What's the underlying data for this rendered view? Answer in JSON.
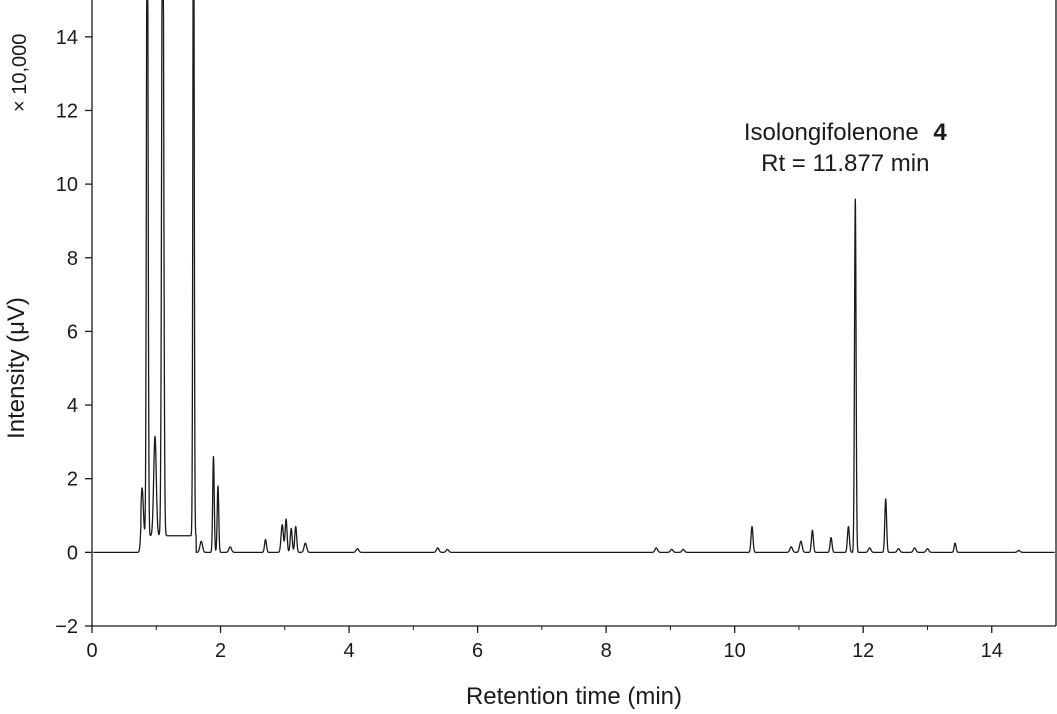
{
  "chart_data": {
    "type": "line",
    "title": "",
    "xlabel": "Retention time (min)",
    "ylabel": "Intensity (μV)",
    "y_multiplier": "× 10,000",
    "xlim": [
      0,
      15
    ],
    "ylim": [
      -2,
      15
    ],
    "x_ticks": [
      0,
      2,
      4,
      6,
      8,
      10,
      12,
      14
    ],
    "y_ticks": [
      -2,
      0,
      2,
      4,
      6,
      8,
      10,
      12,
      14
    ],
    "grid": false,
    "legend": "none",
    "line_color": "#1a1a1a",
    "annotations": [
      {
        "x": 11.877,
        "text": "Isolongifolenone",
        "bold_suffix": "4",
        "subtext": "Rt = 11.877 min"
      }
    ],
    "peaks": [
      {
        "x": 0.78,
        "y": 1.3,
        "w": 0.018
      },
      {
        "x": 0.86,
        "y": 20,
        "w": 0.012
      },
      {
        "x": 0.98,
        "y": 2.7,
        "w": 0.02
      },
      {
        "x": 1.1,
        "y": 20,
        "w": 0.015
      },
      {
        "x": 1.58,
        "y": 20,
        "w": 0.01
      },
      {
        "x": 1.7,
        "y": 0.3,
        "w": 0.02
      },
      {
        "x": 1.89,
        "y": 2.6,
        "w": 0.012
      },
      {
        "x": 1.96,
        "y": 1.8,
        "w": 0.012
      },
      {
        "x": 2.15,
        "y": 0.15,
        "w": 0.02
      },
      {
        "x": 2.7,
        "y": 0.35,
        "w": 0.015
      },
      {
        "x": 2.96,
        "y": 0.75,
        "w": 0.018
      },
      {
        "x": 3.02,
        "y": 0.9,
        "w": 0.015
      },
      {
        "x": 3.1,
        "y": 0.65,
        "w": 0.015
      },
      {
        "x": 3.17,
        "y": 0.7,
        "w": 0.015
      },
      {
        "x": 3.32,
        "y": 0.25,
        "w": 0.02
      },
      {
        "x": 4.13,
        "y": 0.1,
        "w": 0.02
      },
      {
        "x": 5.38,
        "y": 0.12,
        "w": 0.02
      },
      {
        "x": 5.53,
        "y": 0.08,
        "w": 0.02
      },
      {
        "x": 8.78,
        "y": 0.12,
        "w": 0.02
      },
      {
        "x": 9.02,
        "y": 0.08,
        "w": 0.02
      },
      {
        "x": 9.2,
        "y": 0.08,
        "w": 0.02
      },
      {
        "x": 10.27,
        "y": 0.7,
        "w": 0.015
      },
      {
        "x": 10.88,
        "y": 0.15,
        "w": 0.02
      },
      {
        "x": 11.03,
        "y": 0.3,
        "w": 0.02
      },
      {
        "x": 11.21,
        "y": 0.6,
        "w": 0.015
      },
      {
        "x": 11.5,
        "y": 0.4,
        "w": 0.015
      },
      {
        "x": 11.77,
        "y": 0.7,
        "w": 0.015
      },
      {
        "x": 11.877,
        "y": 9.6,
        "w": 0.012
      },
      {
        "x": 12.1,
        "y": 0.12,
        "w": 0.02
      },
      {
        "x": 12.35,
        "y": 1.45,
        "w": 0.014
      },
      {
        "x": 12.55,
        "y": 0.1,
        "w": 0.02
      },
      {
        "x": 12.8,
        "y": 0.12,
        "w": 0.02
      },
      {
        "x": 13.0,
        "y": 0.1,
        "w": 0.02
      },
      {
        "x": 13.43,
        "y": 0.25,
        "w": 0.015
      },
      {
        "x": 14.42,
        "y": 0.05,
        "w": 0.02
      }
    ]
  }
}
